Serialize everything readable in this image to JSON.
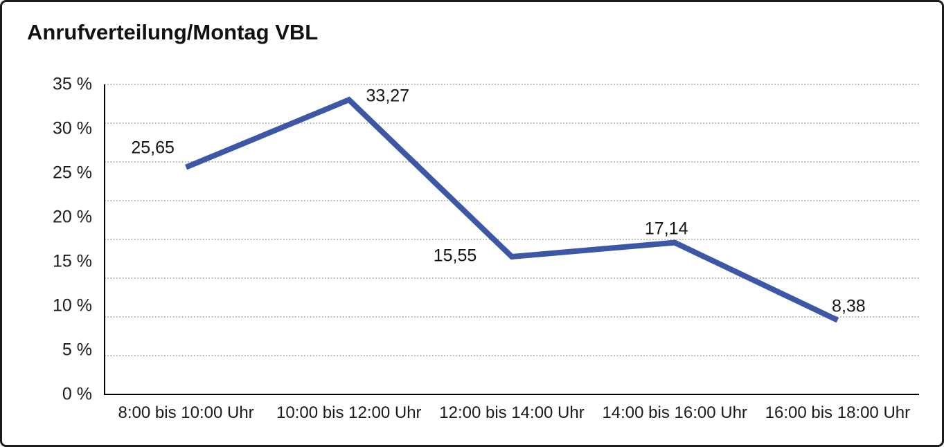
{
  "title": "Anrufverteilung/Montag VBL",
  "chart_data": {
    "type": "line",
    "title": "Anrufverteilung/Montag VBL",
    "categories": [
      "8:00 bis 10:00 Uhr",
      "10:00 bis 12:00 Uhr",
      "12:00 bis 14:00 Uhr",
      "14:00 bis 16:00 Uhr",
      "16:00 bis 18:00 Uhr"
    ],
    "values": [
      25.65,
      33.27,
      15.55,
      17.14,
      8.38
    ],
    "value_labels": [
      "25,65",
      "33,27",
      "15,55",
      "17,14",
      "8,38"
    ],
    "y_ticks": [
      "35 %",
      "30 %",
      "25 %",
      "20 %",
      "15 %",
      "10 %",
      "5 %",
      "0 %"
    ],
    "ylim": [
      0,
      35
    ],
    "xlabel": "",
    "ylabel": "",
    "legend": "none",
    "grid": "dotted-horizontal",
    "colors": {
      "line": "#3B57A5",
      "grid": "#7d7d7d",
      "axis": "#000000",
      "text": "#1a1a1a"
    }
  }
}
